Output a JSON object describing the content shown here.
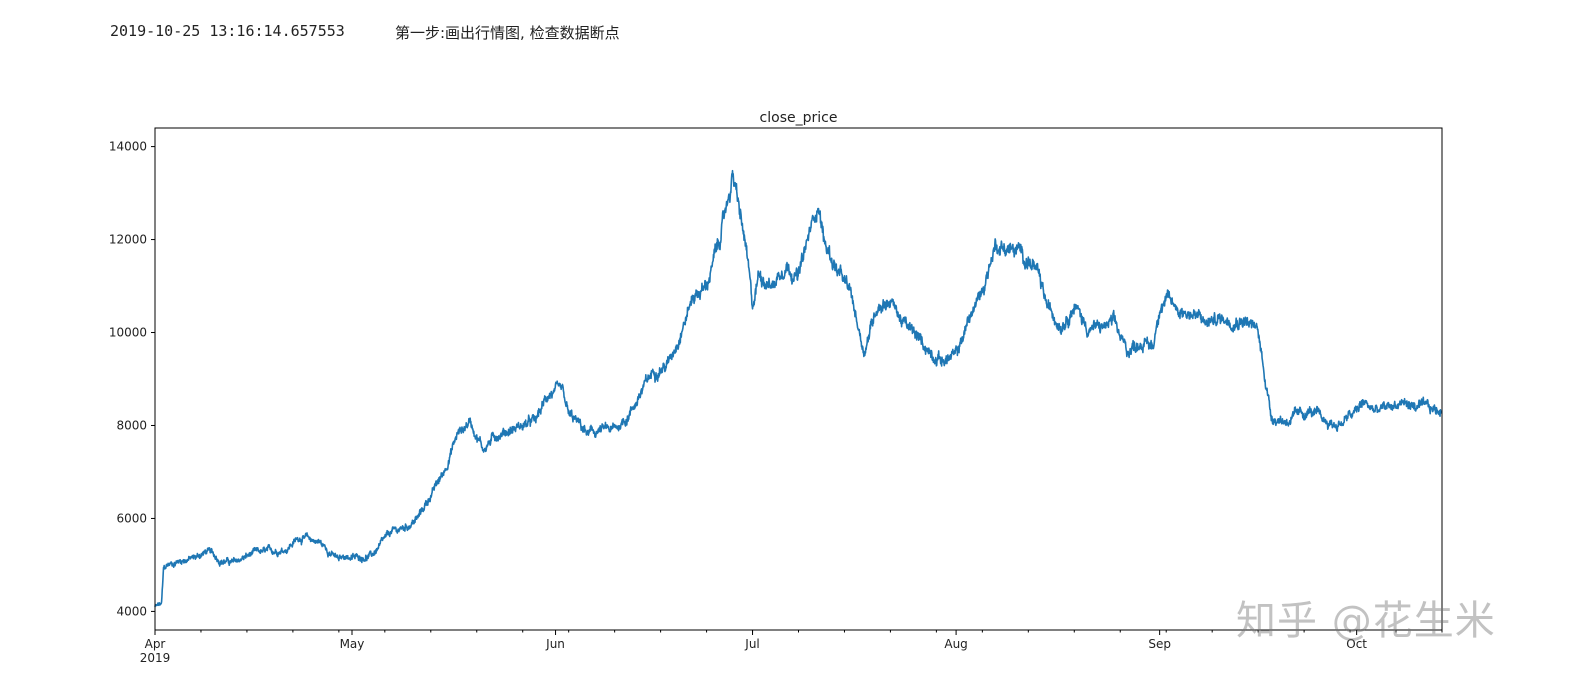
{
  "log": {
    "timestamp": "2019-10-25 13:16:14.657553",
    "message": "第一步:画出行情图, 检查数据断点"
  },
  "watermark": "知乎 @花生米",
  "colors": {
    "line": "#1f77b4",
    "axis": "#000000",
    "text": "#222222"
  },
  "chart_data": {
    "type": "line",
    "title": "close_price",
    "xlabel": "",
    "ylabel": "",
    "grid": false,
    "ylim": [
      3600,
      14400
    ],
    "xlim": [
      "2019-04-01",
      "2019-10-15"
    ],
    "yticks": [
      4000,
      6000,
      8000,
      10000,
      12000,
      14000
    ],
    "xticks": [
      {
        "day": 0,
        "label": "Apr",
        "sublabel": "2019"
      },
      {
        "day": 30,
        "label": "May"
      },
      {
        "day": 61,
        "label": "Jun"
      },
      {
        "day": 91,
        "label": "Jul"
      },
      {
        "day": 122,
        "label": "Aug"
      },
      {
        "day": 153,
        "label": "Sep"
      },
      {
        "day": 183,
        "label": "Oct"
      }
    ],
    "series": [
      {
        "name": "close_price",
        "x_unit": "days since 2019-04-01",
        "x": [
          0,
          1,
          1.3,
          2,
          4,
          6,
          8,
          10,
          12,
          15,
          18,
          20,
          22,
          25,
          28,
          29,
          30,
          33,
          36,
          38,
          40,
          42,
          44,
          46,
          48,
          50,
          52,
          54,
          56,
          58,
          60,
          62,
          63,
          64,
          66,
          68,
          70,
          72,
          74,
          76,
          78,
          80,
          82,
          84,
          86,
          88,
          90,
          91,
          92,
          94,
          96,
          98,
          100,
          101,
          102,
          104,
          106,
          108,
          110,
          112,
          114,
          116,
          118,
          120,
          122,
          124,
          126,
          128,
          130,
          132,
          134,
          136,
          138,
          140,
          142,
          144,
          146,
          148,
          150,
          152,
          153,
          154,
          156,
          158,
          160,
          162,
          164,
          166,
          168,
          170,
          172,
          174,
          176,
          178,
          180,
          182,
          183,
          184,
          186,
          188,
          190,
          192,
          194,
          196
        ],
        "values": [
          4100,
          4150,
          4900,
          5000,
          5100,
          5150,
          5300,
          5100,
          5050,
          5250,
          5300,
          5350,
          5600,
          5500,
          5100,
          5200,
          5150,
          5200,
          5700,
          5800,
          6000,
          6500,
          7000,
          7800,
          8100,
          7500,
          7800,
          7900,
          8000,
          8100,
          8700,
          8700,
          8200,
          8100,
          7800,
          7900,
          7900,
          8200,
          8700,
          9200,
          9300,
          10000,
          10800,
          11000,
          12000,
          13400,
          11800,
          10500,
          11300,
          11000,
          11500,
          11200,
          12300,
          12800,
          11900,
          11300,
          10800,
          9600,
          10600,
          10700,
          10200,
          9900,
          9600,
          9400,
          9500,
          10300,
          10900,
          11900,
          11800,
          11700,
          11400,
          10500,
          10200,
          10600,
          10100,
          10100,
          10200,
          9600,
          9800,
          9700,
          10600,
          10700,
          10500,
          10400,
          10200,
          10300,
          10300,
          10300,
          10000,
          8200,
          8100,
          8200,
          8300,
          8100,
          8000,
          8200,
          8300,
          8500,
          8300,
          8400,
          8500,
          8400,
          8350,
          8300
        ]
      }
    ]
  }
}
